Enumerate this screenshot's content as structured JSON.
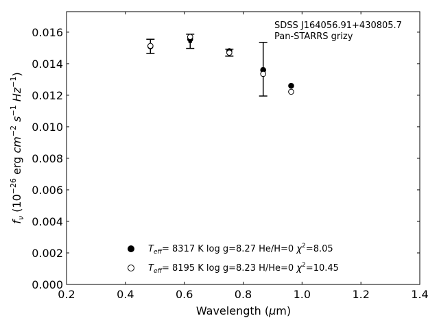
{
  "chart_data": {
    "type": "scatter",
    "title_lines": [
      "SDSS J164056.91+430805.7",
      "Pan-STARRS grizy"
    ],
    "xlabel": "Wavelength (μm)",
    "ylabel": "fν (10⁻²⁶ erg cm⁻² s⁻¹ Hz⁻¹)",
    "xlim": [
      0.2,
      1.4
    ],
    "ylim": [
      0.0,
      0.0173
    ],
    "x_ticks": [
      0.2,
      0.4,
      0.6,
      0.8,
      1.0,
      1.2,
      1.4
    ],
    "x_tick_labels": [
      "0.2",
      "0.4",
      "0.6",
      "0.8",
      "1.0",
      "1.2",
      "1.4"
    ],
    "y_ticks": [
      0.0,
      0.002,
      0.004,
      0.006,
      0.008,
      0.01,
      0.012,
      0.014,
      0.016
    ],
    "y_tick_labels": [
      "0.000",
      "0.002",
      "0.004",
      "0.006",
      "0.008",
      "0.010",
      "0.012",
      "0.014",
      "0.016"
    ],
    "grid": false,
    "legend_position": "bottom-center",
    "observed": {
      "x": [
        0.485,
        0.62,
        0.753,
        0.868
      ],
      "y": [
        0.0151,
        0.01542,
        0.0147,
        0.01365
      ],
      "yerr": [
        0.00045,
        0.00045,
        0.00022,
        0.0017
      ]
    },
    "series": [
      {
        "name": "Teff= 8317 K log g=8.27 He/H=0 χ²=8.05",
        "marker": "filled",
        "legend": {
          "teff": "8317 K",
          "logg": "log g=8.27",
          "comp": "He/H=0",
          "chi2": "8.05"
        },
        "x": [
          0.485,
          0.62,
          0.753,
          0.868,
          0.963
        ],
        "y": [
          0.0151,
          0.01555,
          0.0148,
          0.0136,
          0.0126
        ]
      },
      {
        "name": "Teff= 8195 K log g=8.23 H/He=0 χ²=10.45",
        "marker": "open",
        "legend": {
          "teff": "8195 K",
          "logg": "log g=8.23",
          "comp": "H/He=0",
          "chi2": "10.45"
        },
        "x": [
          0.485,
          0.62,
          0.753,
          0.868,
          0.963
        ],
        "y": [
          0.01513,
          0.0157,
          0.0147,
          0.01335,
          0.01222
        ]
      }
    ],
    "colors": {
      "marker": "#000000",
      "axes": "#000000",
      "background": "#ffffff"
    }
  }
}
